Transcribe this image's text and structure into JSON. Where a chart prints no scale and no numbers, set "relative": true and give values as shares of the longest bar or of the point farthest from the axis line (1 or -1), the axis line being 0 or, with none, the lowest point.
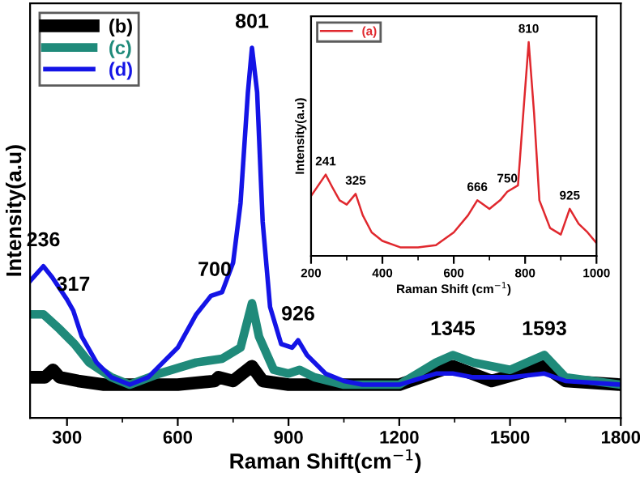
{
  "chart_data": [
    {
      "type": "line",
      "xlabel": "Raman Shift(cm$^{−1}$)",
      "ylabel": "Intensity(a.u)",
      "relative": true,
      "xlim": [
        200,
        1800
      ],
      "xticks": [
        300,
        600,
        900,
        1200,
        1500,
        1800
      ],
      "legend": "top left",
      "grid": false,
      "marker": "none",
      "line_style": "solid",
      "series": [
        {
          "name": "(b)",
          "color": "#000000",
          "x": [
            200,
            240,
            262,
            280,
            330,
            400,
            600,
            700,
            710,
            750,
            801,
            830,
            900,
            1200,
            1345,
            1450,
            1593,
            1650,
            1800
          ],
          "values": [
            0.11,
            0.11,
            0.13,
            0.11,
            0.1,
            0.09,
            0.09,
            0.1,
            0.11,
            0.1,
            0.14,
            0.1,
            0.09,
            0.09,
            0.14,
            0.1,
            0.14,
            0.1,
            0.09
          ]
        },
        {
          "name": "(c)",
          "color": "#1f8a7a",
          "x": [
            200,
            236,
            280,
            320,
            360,
            420,
            470,
            550,
            650,
            720,
            770,
            801,
            820,
            860,
            900,
            930,
            970,
            1050,
            1200,
            1300,
            1345,
            1400,
            1500,
            1593,
            1650,
            1800
          ],
          "values": [
            0.28,
            0.28,
            0.24,
            0.2,
            0.15,
            0.11,
            0.09,
            0.12,
            0.15,
            0.16,
            0.19,
            0.31,
            0.22,
            0.13,
            0.12,
            0.13,
            0.11,
            0.09,
            0.09,
            0.15,
            0.17,
            0.15,
            0.13,
            0.17,
            0.11,
            0.09
          ]
        },
        {
          "name": "(d)",
          "color": "#1414e6",
          "x": [
            200,
            236,
            260,
            300,
            317,
            340,
            380,
            420,
            470,
            520,
            600,
            650,
            690,
            720,
            750,
            770,
            790,
            801,
            815,
            830,
            850,
            880,
            910,
            926,
            950,
            1000,
            1050,
            1100,
            1200,
            1300,
            1345,
            1400,
            1500,
            1593,
            1650,
            1800
          ],
          "values": [
            0.37,
            0.41,
            0.38,
            0.32,
            0.29,
            0.22,
            0.15,
            0.11,
            0.09,
            0.11,
            0.19,
            0.28,
            0.33,
            0.34,
            0.42,
            0.58,
            0.88,
            1.0,
            0.88,
            0.53,
            0.3,
            0.2,
            0.19,
            0.21,
            0.17,
            0.12,
            0.1,
            0.09,
            0.09,
            0.12,
            0.12,
            0.11,
            0.11,
            0.12,
            0.1,
            0.09
          ]
        }
      ],
      "annotations": [
        {
          "text": "236",
          "x": 236,
          "y": 0.41
        },
        {
          "text": "317",
          "x": 317,
          "y": 0.29
        },
        {
          "text": "700",
          "x": 700,
          "y": 0.33
        },
        {
          "text": "801",
          "x": 801,
          "y": 1.0
        },
        {
          "text": "926",
          "x": 926,
          "y": 0.21
        },
        {
          "text": "1345",
          "x": 1345,
          "y": 0.17
        },
        {
          "text": "1593",
          "x": 1593,
          "y": 0.17
        }
      ]
    },
    {
      "type": "line",
      "xlabel": "Raman Shift (cm$^{−1}$)",
      "ylabel": "Intensity(a.u)",
      "relative": true,
      "xlim": [
        200,
        1000
      ],
      "xticks": [
        200,
        400,
        600,
        800,
        1000
      ],
      "legend": "top left",
      "grid": false,
      "marker": "none",
      "line_style": "solid",
      "series": [
        {
          "name": "(a)",
          "color": "#e0282e",
          "x": [
            200,
            241,
            260,
            280,
            300,
            325,
            345,
            370,
            400,
            450,
            500,
            550,
            600,
            640,
            666,
            700,
            730,
            750,
            780,
            795,
            810,
            825,
            840,
            870,
            900,
            925,
            950,
            975,
            1000
          ],
          "values": [
            0.28,
            0.38,
            0.32,
            0.26,
            0.24,
            0.29,
            0.19,
            0.11,
            0.07,
            0.04,
            0.04,
            0.05,
            0.11,
            0.19,
            0.26,
            0.22,
            0.26,
            0.3,
            0.33,
            0.67,
            1.0,
            0.67,
            0.26,
            0.13,
            0.1,
            0.22,
            0.15,
            0.11,
            0.06
          ]
        }
      ],
      "annotations": [
        {
          "text": "241",
          "x": 241,
          "y": 0.38
        },
        {
          "text": "325",
          "x": 325,
          "y": 0.29
        },
        {
          "text": "666",
          "x": 666,
          "y": 0.26
        },
        {
          "text": "750",
          "x": 750,
          "y": 0.3
        },
        {
          "text": "810",
          "x": 810,
          "y": 1.0
        },
        {
          "text": "925",
          "x": 925,
          "y": 0.22
        }
      ]
    }
  ]
}
